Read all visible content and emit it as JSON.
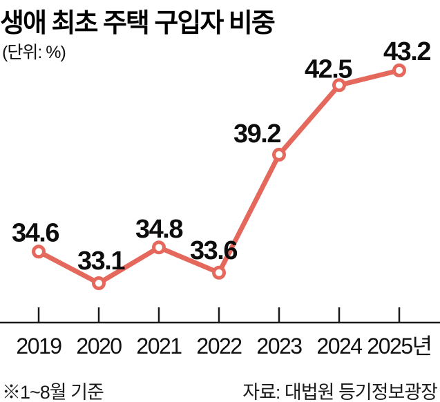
{
  "header": {
    "title": "생애 최초 주택 구입자 비중",
    "unit_label": "(단위: %)"
  },
  "chart_data": {
    "type": "line",
    "title": "생애 최초 주택 구입자 비중",
    "unit": "%",
    "categories": [
      "2019",
      "2020",
      "2021",
      "2022",
      "2023",
      "2024",
      "2025년"
    ],
    "series": [
      {
        "name": "생애 최초 주택 구입자 비중",
        "values": [
          34.6,
          33.1,
          34.8,
          33.6,
          39.2,
          42.5,
          43.2
        ]
      }
    ],
    "value_labels": [
      "34.6",
      "33.1",
      "34.8",
      "33.6",
      "39.2",
      "42.5",
      "43.2"
    ],
    "xlabel": "",
    "ylabel": "",
    "ylim": [
      31,
      45
    ],
    "grid": false,
    "legend": "none",
    "line_color": "#e5685c",
    "marker_fill": "#ffffff",
    "marker_style": "open-circle",
    "axis_color": "#1a1a1a",
    "label_color": "#0d0d0d",
    "year_label_color": "#111111"
  },
  "footer": {
    "note": "※1~8월 기준",
    "source": "자료: 대법원 등기정보광장"
  }
}
